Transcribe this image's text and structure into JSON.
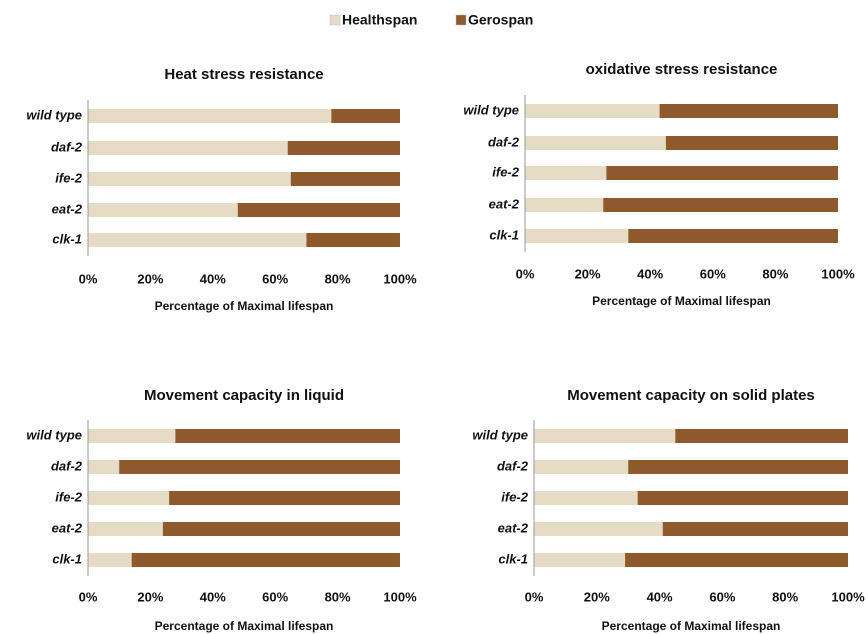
{
  "chart_data": [
    {
      "type": "bar",
      "orientation": "horizontal",
      "stacked": true,
      "title": "Heat stress resistance",
      "categories": [
        "wild type",
        "daf-2",
        "ife-2",
        "eat-2",
        "clk-1"
      ],
      "series": [
        {
          "name": "Healthspan",
          "color": "#e6dcc6",
          "values": [
            78,
            64,
            65,
            48,
            70
          ]
        },
        {
          "name": "Gerospan",
          "color": "#8e5a2c",
          "values": [
            22,
            36,
            35,
            52,
            30
          ]
        }
      ],
      "xlim": [
        0,
        100
      ],
      "xticks": [
        {
          "value": 0,
          "label": "0%"
        },
        {
          "value": 20,
          "label": "20%"
        },
        {
          "value": 40,
          "label": "40%"
        },
        {
          "value": 60,
          "label": "60%"
        },
        {
          "value": 80,
          "label": "80%"
        },
        {
          "value": 100,
          "label": "100%"
        }
      ],
      "xlabel": "Percentage of Maximal lifespan"
    },
    {
      "type": "bar",
      "orientation": "horizontal",
      "stacked": true,
      "title": "oxidative stress resistance",
      "categories": [
        "wild type",
        "daf-2",
        "ife-2",
        "eat-2",
        "clk-1"
      ],
      "series": [
        {
          "color": "#e6dcc6",
          "values": [
            43,
            45,
            26,
            25,
            33
          ]
        },
        {
          "color": "#8e5a2c",
          "values": [
            57,
            55,
            74,
            75,
            67
          ]
        }
      ],
      "xlim": [
        0,
        100
      ],
      "xticks": [
        {
          "value": 0,
          "label": "0%"
        },
        {
          "value": 20,
          "label": "20%"
        },
        {
          "value": 40,
          "label": "40%"
        },
        {
          "value": 60,
          "label": "60%"
        },
        {
          "value": 80,
          "label": "80%"
        },
        {
          "value": 100,
          "label": "100%"
        }
      ],
      "xlabel": "Percentage of Maximal lifespan"
    },
    {
      "type": "bar",
      "orientation": "horizontal",
      "stacked": true,
      "title": "Movement capacity in liquid",
      "categories": [
        "wild type",
        "daf-2",
        "ife-2",
        "eat-2",
        "clk-1"
      ],
      "series": [
        {
          "color": "#e6dcc6",
          "values": [
            28,
            10,
            26,
            24,
            14
          ]
        },
        {
          "color": "#8e5a2c",
          "values": [
            72,
            90,
            74,
            76,
            86
          ]
        }
      ],
      "xlim": [
        0,
        100
      ],
      "xticks": [
        {
          "value": 0,
          "label": "0%"
        },
        {
          "value": 20,
          "label": "20%"
        },
        {
          "value": 40,
          "label": "40%"
        },
        {
          "value": 60,
          "label": "60%"
        },
        {
          "value": 80,
          "label": "80%"
        },
        {
          "value": 100,
          "label": "100%"
        }
      ],
      "xlabel": "Percentage of Maximal lifespan"
    },
    {
      "type": "bar",
      "orientation": "horizontal",
      "stacked": true,
      "title": "Movement capacity on solid plates",
      "categories": [
        "wild type",
        "daf-2",
        "ife-2",
        "eat-2",
        "clk-1"
      ],
      "series": [
        {
          "color": "#e6dcc6",
          "values": [
            45,
            30,
            33,
            41,
            29
          ]
        },
        {
          "color": "#8e5a2c",
          "values": [
            55,
            70,
            67,
            59,
            71
          ]
        }
      ],
      "xlim": [
        0,
        100
      ],
      "xticks": [
        {
          "value": 0,
          "label": "0%"
        },
        {
          "value": 20,
          "label": "20%"
        },
        {
          "value": 40,
          "label": "40%"
        },
        {
          "value": 60,
          "label": "60%"
        },
        {
          "value": 80,
          "label": "80%"
        },
        {
          "value": 100,
          "label": "100%"
        }
      ],
      "xlabel": "Percentage of Maximal lifespan"
    }
  ]
}
